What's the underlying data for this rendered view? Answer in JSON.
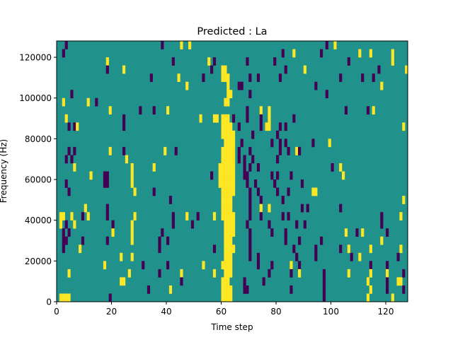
{
  "chart_data": {
    "type": "heatmap",
    "title": "Predicted : La",
    "xlabel": "Time step",
    "ylabel": "Frequency (Hz)",
    "xlim": [
      0,
      128
    ],
    "ylim": [
      0,
      128000
    ],
    "xticks": [
      0,
      20,
      40,
      60,
      80,
      100,
      120
    ],
    "yticks": [
      0,
      20000,
      40000,
      60000,
      80000,
      100000,
      120000
    ],
    "n_cols": 128,
    "n_rows": 32,
    "row_height_hz": 4000,
    "colors": {
      "low": "#440154",
      "mid": "#21918c",
      "high": "#fde725"
    },
    "default_value": "mid",
    "legend_codes": {
      "p": "low",
      "y": "high"
    },
    "rows_top_to_bottom": [
      "p3 p38 y45 y48 p98 y101",
      "p2 p82 y86 p96 y110 y114 y122",
      "y18 p42 y55 p57 p69 p79 p106 y122",
      "p18 y24 p56 y60-61 p83 y90 p117 y127",
      "p34 y44 p53 y60-62 p70 p73 p81 p103 p111 p115",
      "y47 y62 p66-67 p94 y118",
      "p5 y62-63 p70 p98",
      "y2 y11 p14 y61-62",
      "y19 p30 p35 y40 p69 y74 y77 p105 p113 y115",
      "y3 p24 y52 y57-58 y60-62 p64 p69 p74 y77 p86",
      "p4 p6 y7 p24 y60-63 p66 p74 y76-77 p81 p83 y126",
      "y60-64 p71 p80",
      "y61-64 p67 p78 p81 p83 p93 y99",
      "p4 p6 y19 p24 y39 p43 y60-64 p66 p70 p81 p84 y87 p88",
      "p3 p5 y25 y60-64 p66 p68 p71 p80",
      "y6 y27 y35 y59-64 p68 p70 p73 p100 y103",
      "y12 p17-18 y27 p56 y59-64 p68-69 p78 p80 p85 y104",
      "p3 p17-18 y27 y59-64 p69 p72 p79 p89",
      "p4 y28 p35 y60-64 p70 p73 p80 p84 y93-94",
      "p41 y60-63 p70 p74 p82 y126",
      "y10 p18 y60-63 p70 y74 y77 p89 p91 p103",
      "y1-2 y5 p9 y11 p18 y28 p42 y47 p51 y57 y60-64 p70 p74 p82 p84 p118 y125",
      "y1 p3 y6 p20 y27 p42 p49 y61-64 p69 p77 p87 p90 p118",
      "p2 p4 y20 y27 p38 y61-64 p70 p78 p83 y105 p109 y111 p120",
      "p2-3 p9 p18 y27 p37 p40 y61-63 p70 p83 p88 p96 y118",
      "p2 y8 p37 p57 y61-64 p70 p86 p94 p103 y106 y114 y125",
      "y23 y27 y61-63 p70 p73 p87 p94 p107 y110 p124",
      "y17 p31 p40 y53 y60-63 p73 p78 y85 p88 p114 p120",
      "y4 y26 p37 y45 y57 y61-63 p77 p85 y88 p97 y106 y114 y120 p126",
      "y23-24 p45 y60-62 p68 p75 p97 y113 p120 y124-125",
      "p33 y41 y60-63 p68-69 p85 p97 y114 p120 p126",
      "y1-4 p19 y60-63 p97 y113 y122"
    ]
  }
}
